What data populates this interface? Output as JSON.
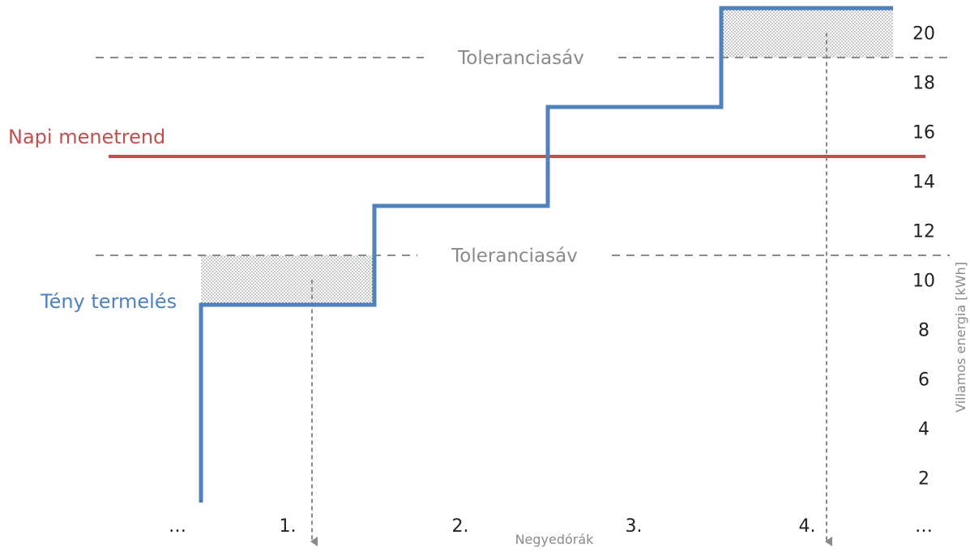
{
  "chart_data": {
    "type": "line",
    "title": "",
    "xlabel": "Negyedórák",
    "ylabel": "Villamos energia [kWh]",
    "y_ticks": [
      2,
      4,
      6,
      8,
      10,
      12,
      14,
      16,
      18,
      20
    ],
    "ylim": [
      0,
      21
    ],
    "x_categories": [
      "…",
      "1.",
      "2.",
      "3.",
      "4.",
      "…"
    ],
    "tolerance_band": {
      "label": "Tolerancia sáv",
      "label_text": "Toleranciasáv",
      "lower": 11,
      "upper": 19,
      "color": "#8a8a8a"
    },
    "series": [
      {
        "name": "Napi menetrend",
        "style": "horizontal-line",
        "value": 15,
        "color": "#c0504d"
      },
      {
        "name": "Tény termelés",
        "style": "step",
        "start_value": 1,
        "values": [
          9,
          13,
          17,
          21
        ],
        "color": "#4f81bd"
      }
    ],
    "shaded_regions": [
      {
        "interval": "1.",
        "from": 9,
        "to": 11,
        "pattern": "dotted"
      },
      {
        "interval": "4.",
        "from": 19,
        "to": 21,
        "pattern": "dotted"
      }
    ],
    "arrows": [
      {
        "interval": "1.",
        "direction": "down"
      },
      {
        "interval": "4.",
        "direction": "down"
      }
    ],
    "grid": false,
    "axis_side": "right"
  }
}
